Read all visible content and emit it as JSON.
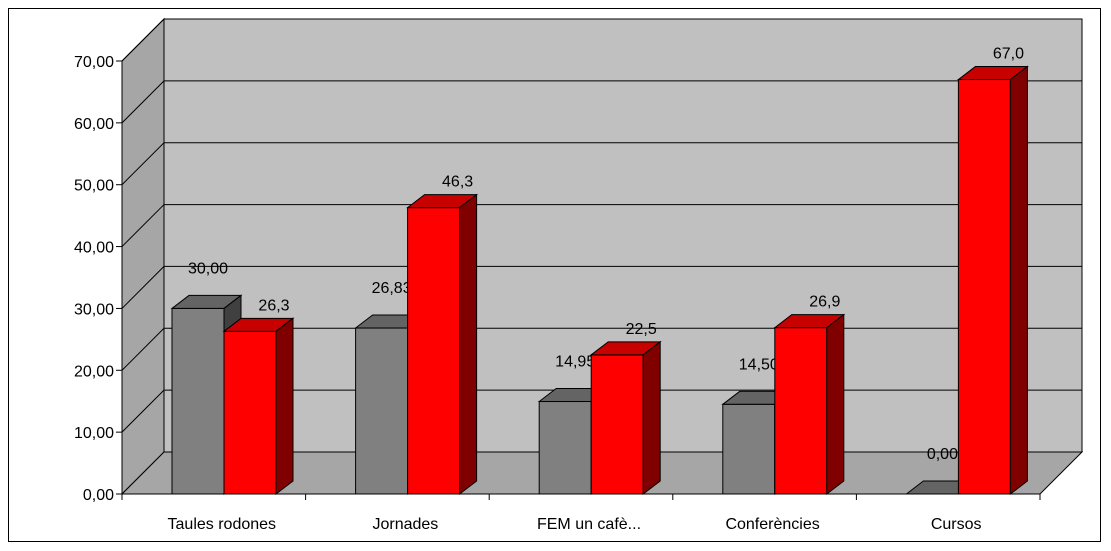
{
  "chart_data": {
    "type": "bar",
    "style": "3d-clustered-column",
    "categories": [
      "Taules rodones",
      "Jornades",
      "FEM un cafè...",
      "Conferències",
      "Cursos"
    ],
    "series": [
      {
        "values": [
          30.0,
          26.83,
          14.95,
          14.5,
          0.0
        ],
        "labels": [
          "30,00",
          "26,83",
          "14,95",
          "14,50",
          "0,00"
        ],
        "color": "#808080"
      },
      {
        "values": [
          26.3,
          46.3,
          22.5,
          26.9,
          67.0
        ],
        "labels": [
          "26,3",
          "46,3",
          "22,5",
          "26,9",
          "67,0"
        ],
        "color": "#ff0000"
      }
    ],
    "yticks": [
      "0,00",
      "10,00",
      "20,00",
      "30,00",
      "40,00",
      "50,00",
      "60,00",
      "70,00"
    ],
    "ylim": [
      0,
      70
    ],
    "grid": true,
    "wall_color": "#c0c0c0",
    "legend": "none",
    "title": "",
    "xlabel": "",
    "ylabel": ""
  }
}
